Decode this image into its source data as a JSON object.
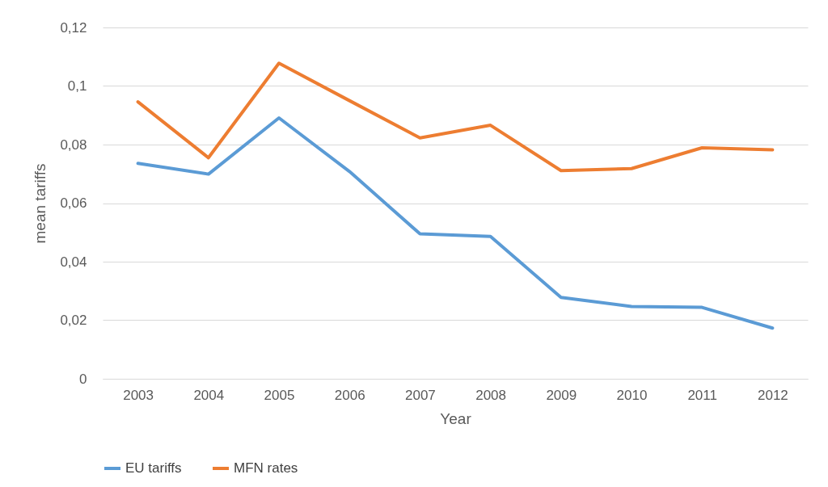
{
  "chart_data": {
    "type": "line",
    "xlabel": "Year",
    "ylabel": "mean tariffs",
    "categories": [
      "2003",
      "2004",
      "2005",
      "2006",
      "2007",
      "2008",
      "2009",
      "2010",
      "2011",
      "2012"
    ],
    "series": [
      {
        "name": "EU tariffs",
        "color": "#5b9bd5",
        "values": [
          0.0736,
          0.0699,
          0.0891,
          0.0708,
          0.0495,
          0.0486,
          0.0278,
          0.0247,
          0.0244,
          0.0173
        ]
      },
      {
        "name": "MFN rates",
        "color": "#ed7d31",
        "values": [
          0.0946,
          0.0755,
          0.1078,
          0.095,
          0.0823,
          0.0866,
          0.0711,
          0.0718,
          0.0789,
          0.0782
        ]
      }
    ],
    "ylim": [
      0,
      0.12
    ],
    "yticks": [
      {
        "value": 0,
        "label": "0"
      },
      {
        "value": 0.02,
        "label": "0,02"
      },
      {
        "value": 0.04,
        "label": "0,04"
      },
      {
        "value": 0.06,
        "label": "0,06"
      },
      {
        "value": 0.08,
        "label": "0,08"
      },
      {
        "value": 0.1,
        "label": "0,1"
      },
      {
        "value": 0.12,
        "label": "0,12"
      }
    ],
    "grid": "y",
    "legend": "bottom",
    "marker": "none",
    "line_style": "solid"
  }
}
